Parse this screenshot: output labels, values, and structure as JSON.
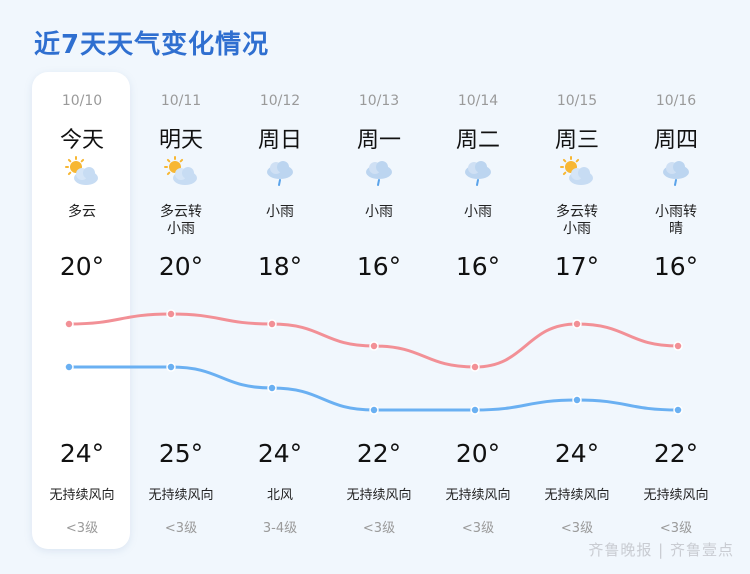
{
  "title": "近7天天气变化情况",
  "days": [
    {
      "date": "10/10",
      "day": "今天",
      "icon": "sun-cloud-icon",
      "desc": "多云",
      "low": "20°",
      "high": "24°",
      "wind": "无持续风向",
      "level": "<3级",
      "low_value": 20,
      "high_value": 24
    },
    {
      "date": "10/11",
      "day": "明天",
      "icon": "sun-cloud-icon",
      "desc": "多云转\n小雨",
      "low": "20°",
      "high": "25°",
      "wind": "无持续风向",
      "level": "<3级",
      "low_value": 20,
      "high_value": 25
    },
    {
      "date": "10/12",
      "day": "周日",
      "icon": "rain-cloud-icon",
      "desc": "小雨",
      "low": "18°",
      "high": "24°",
      "wind": "北风",
      "level": "3-4级",
      "low_value": 18,
      "high_value": 24
    },
    {
      "date": "10/13",
      "day": "周一",
      "icon": "rain-cloud-icon",
      "desc": "小雨",
      "low": "16°",
      "high": "22°",
      "wind": "无持续风向",
      "level": "<3级",
      "low_value": 16,
      "high_value": 22
    },
    {
      "date": "10/14",
      "day": "周二",
      "icon": "rain-cloud-icon",
      "desc": "小雨",
      "low": "16°",
      "high": "20°",
      "wind": "无持续风向",
      "level": "<3级",
      "low_value": 16,
      "high_value": 20
    },
    {
      "date": "10/15",
      "day": "周三",
      "icon": "sun-cloud-icon",
      "desc": "多云转\n小雨",
      "low": "17°",
      "high": "24°",
      "wind": "无持续风向",
      "level": "<3级",
      "low_value": 17,
      "high_value": 24
    },
    {
      "date": "10/16",
      "day": "周四",
      "icon": "rain-cloud-icon",
      "desc": "小雨转\n晴",
      "low": "16°",
      "high": "22°",
      "wind": "无持续风向",
      "level": "<3级",
      "low_value": 16,
      "high_value": 22
    }
  ],
  "colors": {
    "high_line": "#f29096",
    "low_line": "#6ab0f2",
    "title": "#2f6fd0"
  },
  "watermark": "齐鲁晚报 | 齐鲁壹点"
}
